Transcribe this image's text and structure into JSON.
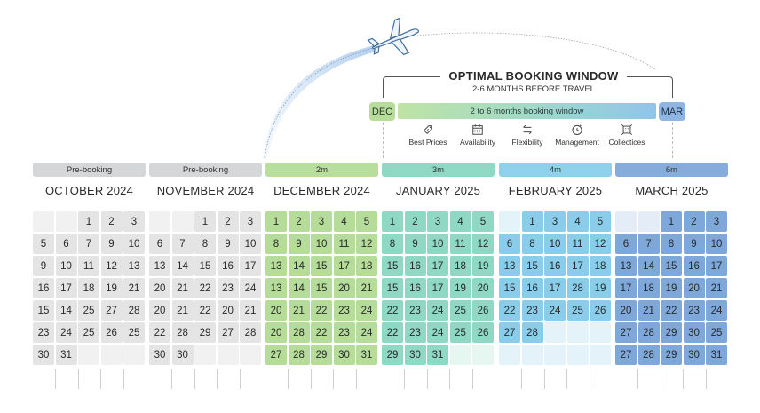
{
  "header": {
    "title": "OPTIMAL BOOKING WINDOW",
    "subtitle": "2-6 MONTHS BEFORE TRAVEL",
    "start_pill": "DEC",
    "end_pill": "MAR",
    "bar_label": "2 to 6 months booking window",
    "features": [
      {
        "icon": "price-tag-icon",
        "label": "Best Prices"
      },
      {
        "icon": "calendar-icon",
        "label": "Availability"
      },
      {
        "icon": "swap-arrows-icon",
        "label": "Flexibility"
      },
      {
        "icon": "clock-icon",
        "label": "Management"
      },
      {
        "icon": "frame-icon",
        "label": "Collectices"
      }
    ]
  },
  "colors": {
    "prebooking": "#d4d6d8",
    "prebooking_cell": "#e4e4e4",
    "dec": "#b8de9c",
    "jan": "#8fd9c4",
    "feb": "#8fd0ea",
    "mar": "#7fa9dc"
  },
  "months": [
    {
      "id": "oct",
      "banner": "Pre-booking",
      "title": "OCTOBER 2024",
      "rows": [
        [
          "",
          "",
          "1",
          "2",
          "3"
        ],
        [
          "5",
          "6",
          "7",
          "9",
          "10"
        ],
        [
          "9",
          "10",
          "11",
          "12",
          "13"
        ],
        [
          "16",
          "17",
          "18",
          "19",
          "21"
        ],
        [
          "15",
          "14",
          "25",
          "27",
          "28"
        ],
        [
          "23",
          "24",
          "25",
          "26",
          "25"
        ],
        [
          "30",
          "31",
          "",
          "",
          ""
        ]
      ]
    },
    {
      "id": "nov",
      "banner": "Pre-booking",
      "title": "NOVEMBER 2024",
      "rows": [
        [
          "",
          "",
          "1",
          "2",
          "3"
        ],
        [
          "6",
          "7",
          "8",
          "9",
          "10"
        ],
        [
          "13",
          "14",
          "15",
          "16",
          "17"
        ],
        [
          "20",
          "21",
          "22",
          "23",
          "24"
        ],
        [
          "20",
          "21",
          "22",
          "20",
          "21"
        ],
        [
          "22",
          "28",
          "29",
          "27",
          "28"
        ],
        [
          "30",
          "30",
          "",
          "",
          ""
        ]
      ]
    },
    {
      "id": "dec",
      "banner": "2m",
      "title": "DECEMBER 2024",
      "rows": [
        [
          "1",
          "2",
          "3",
          "4",
          "5"
        ],
        [
          "8",
          "9",
          "10",
          "11",
          "12"
        ],
        [
          "13",
          "14",
          "15",
          "17",
          "18"
        ],
        [
          "13",
          "14",
          "15",
          "20",
          "21"
        ],
        [
          "20",
          "21",
          "22",
          "23",
          "24"
        ],
        [
          "20",
          "28",
          "22",
          "23",
          "24"
        ],
        [
          "27",
          "28",
          "29",
          "30",
          "31"
        ]
      ]
    },
    {
      "id": "jan",
      "banner": "3m",
      "title": "JANUARY 2025",
      "rows": [
        [
          "1",
          "2",
          "3",
          "4",
          "5"
        ],
        [
          "8",
          "9",
          "10",
          "11",
          "12"
        ],
        [
          "15",
          "16",
          "17",
          "18",
          "19"
        ],
        [
          "15",
          "16",
          "17",
          "19",
          "20"
        ],
        [
          "22",
          "23",
          "24",
          "25",
          "26"
        ],
        [
          "22",
          "23",
          "24",
          "25",
          "26"
        ],
        [
          "29",
          "30",
          "31",
          "",
          ""
        ]
      ]
    },
    {
      "id": "feb",
      "banner": "4m",
      "title": "FEBRUARY 2025",
      "rows": [
        [
          "",
          "1",
          "3",
          "4",
          "5"
        ],
        [
          "6",
          "8",
          "10",
          "11",
          "12"
        ],
        [
          "13",
          "15",
          "16",
          "17",
          "18"
        ],
        [
          "15",
          "16",
          "17",
          "28",
          "19"
        ],
        [
          "22",
          "23",
          "24",
          "25",
          "26"
        ],
        [
          "27",
          "28",
          "",
          "",
          ""
        ],
        [
          "",
          "",
          "",
          "",
          ""
        ]
      ]
    },
    {
      "id": "mar",
      "banner": "6m",
      "title": "MARCH 2025",
      "rows": [
        [
          "",
          "",
          "1",
          "2",
          "3"
        ],
        [
          "6",
          "7",
          "8",
          "9",
          "10"
        ],
        [
          "13",
          "14",
          "15",
          "16",
          "17"
        ],
        [
          "17",
          "18",
          "19",
          "20",
          "21"
        ],
        [
          "20",
          "21",
          "22",
          "23",
          "24"
        ],
        [
          "27",
          "28",
          "29",
          "30",
          "25"
        ],
        [
          "27",
          "28",
          "29",
          "30",
          "31"
        ]
      ]
    }
  ]
}
